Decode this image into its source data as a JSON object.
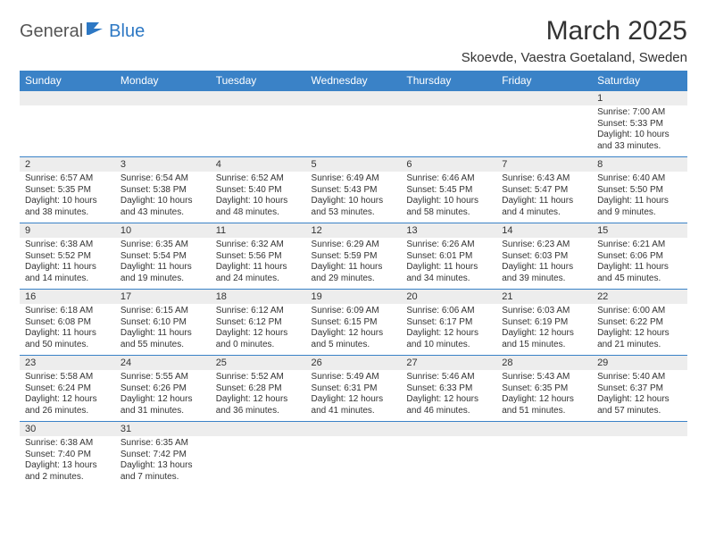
{
  "brand": {
    "part1": "General",
    "part2": "Blue"
  },
  "title": "March 2025",
  "location": "Skoevde, Vaestra Goetaland, Sweden",
  "colors": {
    "header_bg": "#3a82c7",
    "header_fg": "#ffffff",
    "daynum_bg": "#ededed",
    "cell_border": "#3a82c7",
    "text": "#333333",
    "brand_accent": "#2d78c4"
  },
  "dayHeaders": [
    "Sunday",
    "Monday",
    "Tuesday",
    "Wednesday",
    "Thursday",
    "Friday",
    "Saturday"
  ],
  "weeks": [
    [
      {
        "n": "",
        "sr": "",
        "ss": "",
        "dl": ""
      },
      {
        "n": "",
        "sr": "",
        "ss": "",
        "dl": ""
      },
      {
        "n": "",
        "sr": "",
        "ss": "",
        "dl": ""
      },
      {
        "n": "",
        "sr": "",
        "ss": "",
        "dl": ""
      },
      {
        "n": "",
        "sr": "",
        "ss": "",
        "dl": ""
      },
      {
        "n": "",
        "sr": "",
        "ss": "",
        "dl": ""
      },
      {
        "n": "1",
        "sr": "Sunrise: 7:00 AM",
        "ss": "Sunset: 5:33 PM",
        "dl": "Daylight: 10 hours and 33 minutes."
      }
    ],
    [
      {
        "n": "2",
        "sr": "Sunrise: 6:57 AM",
        "ss": "Sunset: 5:35 PM",
        "dl": "Daylight: 10 hours and 38 minutes."
      },
      {
        "n": "3",
        "sr": "Sunrise: 6:54 AM",
        "ss": "Sunset: 5:38 PM",
        "dl": "Daylight: 10 hours and 43 minutes."
      },
      {
        "n": "4",
        "sr": "Sunrise: 6:52 AM",
        "ss": "Sunset: 5:40 PM",
        "dl": "Daylight: 10 hours and 48 minutes."
      },
      {
        "n": "5",
        "sr": "Sunrise: 6:49 AM",
        "ss": "Sunset: 5:43 PM",
        "dl": "Daylight: 10 hours and 53 minutes."
      },
      {
        "n": "6",
        "sr": "Sunrise: 6:46 AM",
        "ss": "Sunset: 5:45 PM",
        "dl": "Daylight: 10 hours and 58 minutes."
      },
      {
        "n": "7",
        "sr": "Sunrise: 6:43 AM",
        "ss": "Sunset: 5:47 PM",
        "dl": "Daylight: 11 hours and 4 minutes."
      },
      {
        "n": "8",
        "sr": "Sunrise: 6:40 AM",
        "ss": "Sunset: 5:50 PM",
        "dl": "Daylight: 11 hours and 9 minutes."
      }
    ],
    [
      {
        "n": "9",
        "sr": "Sunrise: 6:38 AM",
        "ss": "Sunset: 5:52 PM",
        "dl": "Daylight: 11 hours and 14 minutes."
      },
      {
        "n": "10",
        "sr": "Sunrise: 6:35 AM",
        "ss": "Sunset: 5:54 PM",
        "dl": "Daylight: 11 hours and 19 minutes."
      },
      {
        "n": "11",
        "sr": "Sunrise: 6:32 AM",
        "ss": "Sunset: 5:56 PM",
        "dl": "Daylight: 11 hours and 24 minutes."
      },
      {
        "n": "12",
        "sr": "Sunrise: 6:29 AM",
        "ss": "Sunset: 5:59 PM",
        "dl": "Daylight: 11 hours and 29 minutes."
      },
      {
        "n": "13",
        "sr": "Sunrise: 6:26 AM",
        "ss": "Sunset: 6:01 PM",
        "dl": "Daylight: 11 hours and 34 minutes."
      },
      {
        "n": "14",
        "sr": "Sunrise: 6:23 AM",
        "ss": "Sunset: 6:03 PM",
        "dl": "Daylight: 11 hours and 39 minutes."
      },
      {
        "n": "15",
        "sr": "Sunrise: 6:21 AM",
        "ss": "Sunset: 6:06 PM",
        "dl": "Daylight: 11 hours and 45 minutes."
      }
    ],
    [
      {
        "n": "16",
        "sr": "Sunrise: 6:18 AM",
        "ss": "Sunset: 6:08 PM",
        "dl": "Daylight: 11 hours and 50 minutes."
      },
      {
        "n": "17",
        "sr": "Sunrise: 6:15 AM",
        "ss": "Sunset: 6:10 PM",
        "dl": "Daylight: 11 hours and 55 minutes."
      },
      {
        "n": "18",
        "sr": "Sunrise: 6:12 AM",
        "ss": "Sunset: 6:12 PM",
        "dl": "Daylight: 12 hours and 0 minutes."
      },
      {
        "n": "19",
        "sr": "Sunrise: 6:09 AM",
        "ss": "Sunset: 6:15 PM",
        "dl": "Daylight: 12 hours and 5 minutes."
      },
      {
        "n": "20",
        "sr": "Sunrise: 6:06 AM",
        "ss": "Sunset: 6:17 PM",
        "dl": "Daylight: 12 hours and 10 minutes."
      },
      {
        "n": "21",
        "sr": "Sunrise: 6:03 AM",
        "ss": "Sunset: 6:19 PM",
        "dl": "Daylight: 12 hours and 15 minutes."
      },
      {
        "n": "22",
        "sr": "Sunrise: 6:00 AM",
        "ss": "Sunset: 6:22 PM",
        "dl": "Daylight: 12 hours and 21 minutes."
      }
    ],
    [
      {
        "n": "23",
        "sr": "Sunrise: 5:58 AM",
        "ss": "Sunset: 6:24 PM",
        "dl": "Daylight: 12 hours and 26 minutes."
      },
      {
        "n": "24",
        "sr": "Sunrise: 5:55 AM",
        "ss": "Sunset: 6:26 PM",
        "dl": "Daylight: 12 hours and 31 minutes."
      },
      {
        "n": "25",
        "sr": "Sunrise: 5:52 AM",
        "ss": "Sunset: 6:28 PM",
        "dl": "Daylight: 12 hours and 36 minutes."
      },
      {
        "n": "26",
        "sr": "Sunrise: 5:49 AM",
        "ss": "Sunset: 6:31 PM",
        "dl": "Daylight: 12 hours and 41 minutes."
      },
      {
        "n": "27",
        "sr": "Sunrise: 5:46 AM",
        "ss": "Sunset: 6:33 PM",
        "dl": "Daylight: 12 hours and 46 minutes."
      },
      {
        "n": "28",
        "sr": "Sunrise: 5:43 AM",
        "ss": "Sunset: 6:35 PM",
        "dl": "Daylight: 12 hours and 51 minutes."
      },
      {
        "n": "29",
        "sr": "Sunrise: 5:40 AM",
        "ss": "Sunset: 6:37 PM",
        "dl": "Daylight: 12 hours and 57 minutes."
      }
    ],
    [
      {
        "n": "30",
        "sr": "Sunrise: 6:38 AM",
        "ss": "Sunset: 7:40 PM",
        "dl": "Daylight: 13 hours and 2 minutes."
      },
      {
        "n": "31",
        "sr": "Sunrise: 6:35 AM",
        "ss": "Sunset: 7:42 PM",
        "dl": "Daylight: 13 hours and 7 minutes."
      },
      {
        "n": "",
        "sr": "",
        "ss": "",
        "dl": ""
      },
      {
        "n": "",
        "sr": "",
        "ss": "",
        "dl": ""
      },
      {
        "n": "",
        "sr": "",
        "ss": "",
        "dl": ""
      },
      {
        "n": "",
        "sr": "",
        "ss": "",
        "dl": ""
      },
      {
        "n": "",
        "sr": "",
        "ss": "",
        "dl": ""
      }
    ]
  ]
}
